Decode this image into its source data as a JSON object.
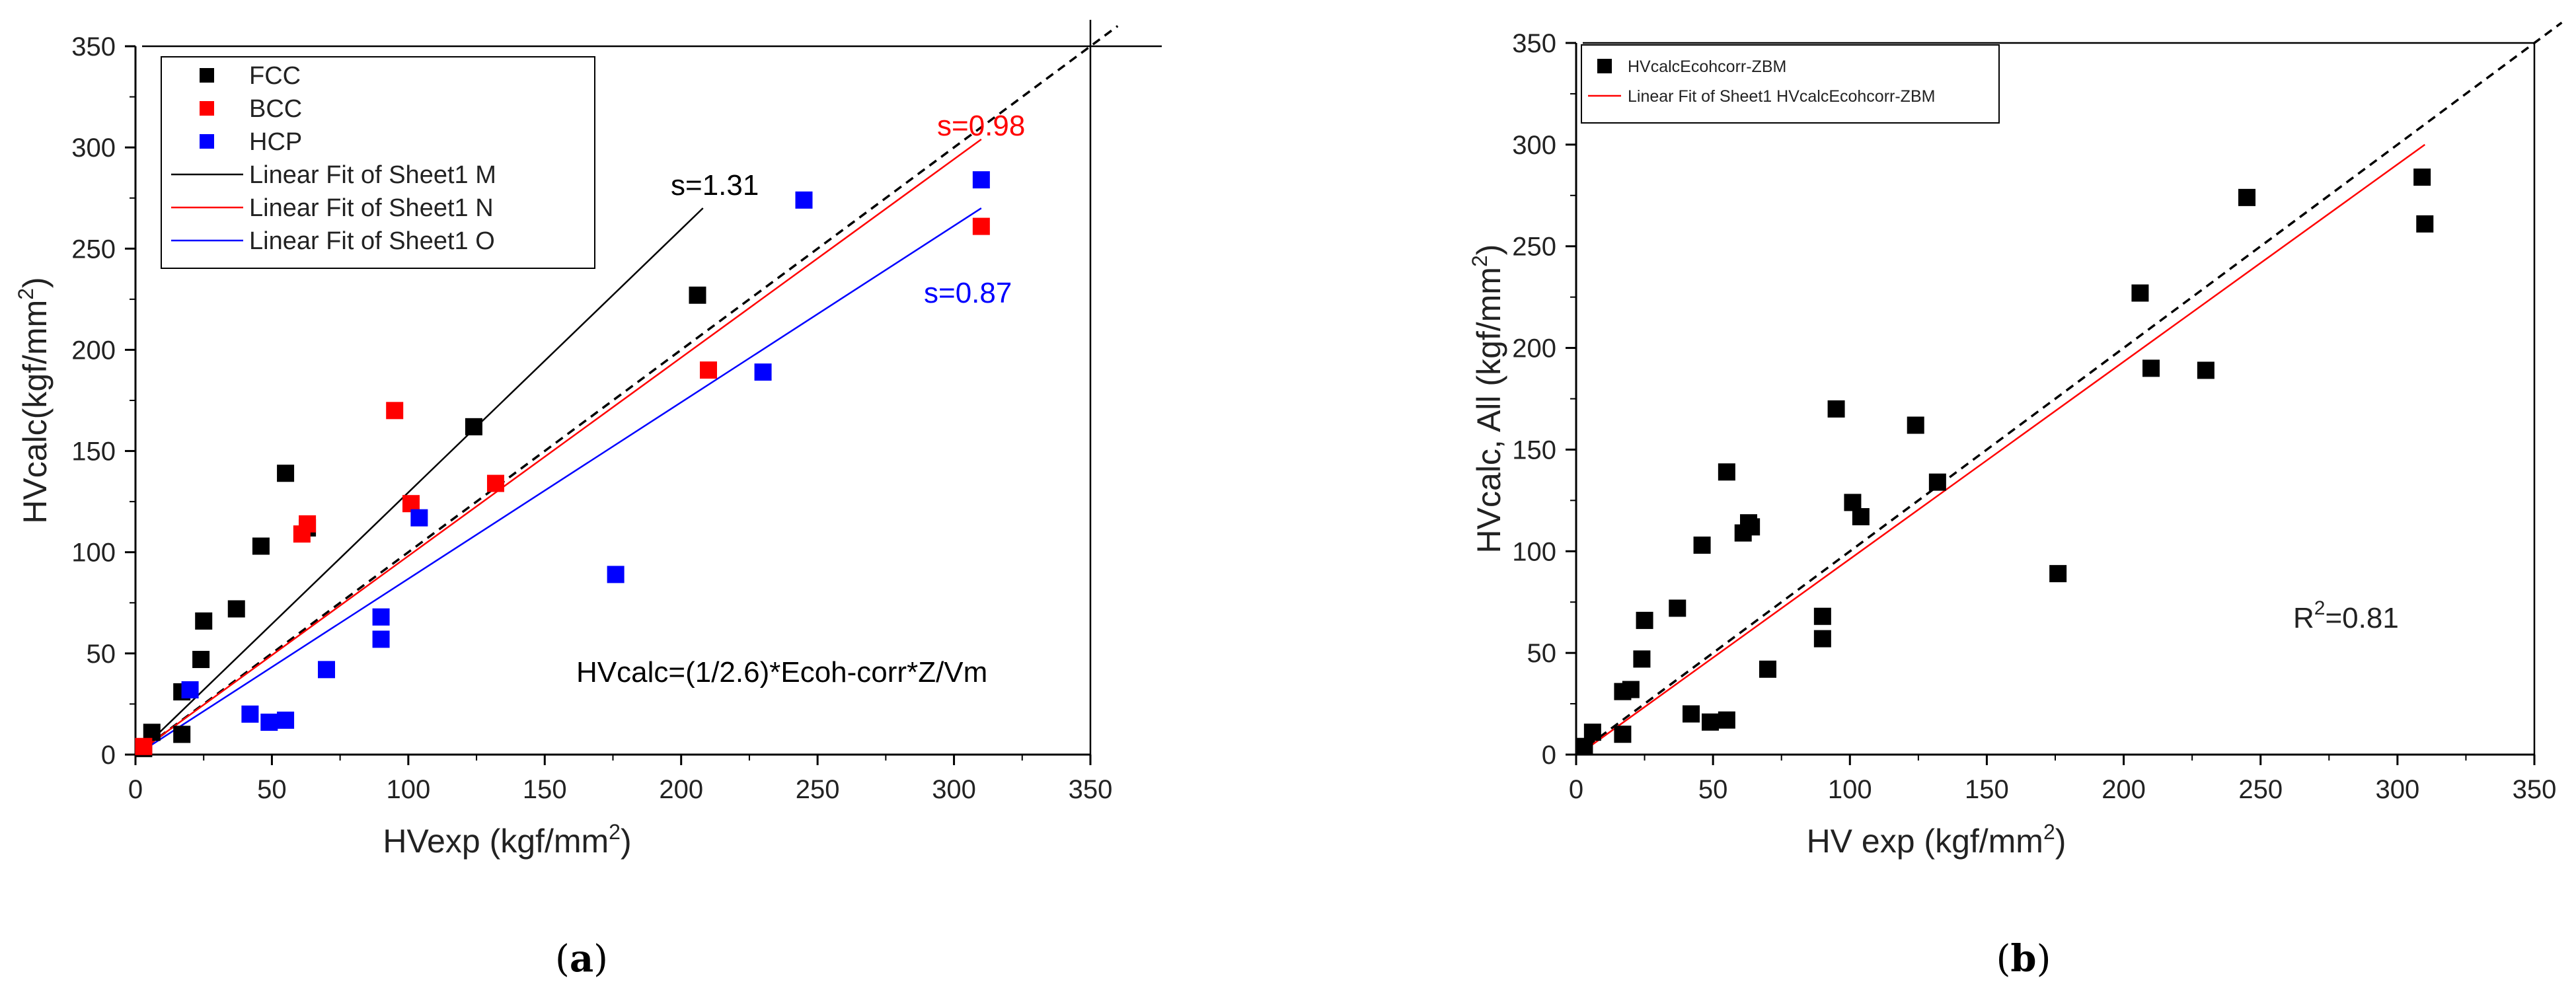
{
  "chart_data": [
    {
      "type": "scatter",
      "panel_label": {
        "open": "(",
        "letter": "a",
        "close": ")"
      },
      "xlabel": "HVexp (kgf/mm2)",
      "xlabel_parts": {
        "main": "HVexp (kgf/mm",
        "sup": "2",
        "end": ")"
      },
      "ylabel": "HVcalc(kgf/mm2)",
      "ylabel_parts": {
        "main": "HVcalc(kgf/mm",
        "sup": "2",
        "end": ")"
      },
      "xlim": [
        0,
        350
      ],
      "ylim": [
        0,
        350
      ],
      "xticks": [
        0,
        50,
        100,
        150,
        200,
        250,
        300,
        350
      ],
      "yticks": [
        0,
        50,
        100,
        150,
        200,
        250,
        300,
        350
      ],
      "legend_position": "top-left",
      "series": [
        {
          "name": "FCC",
          "color": "#000000",
          "points": [
            [
              3,
              3
            ],
            [
              6,
              11
            ],
            [
              17,
              10
            ],
            [
              17,
              31
            ],
            [
              24,
              47
            ],
            [
              25,
              66
            ],
            [
              37,
              72
            ],
            [
              46,
              103
            ],
            [
              55,
              139
            ],
            [
              63,
              112
            ],
            [
              124,
              162
            ],
            [
              206,
              227
            ]
          ]
        },
        {
          "name": "BCC",
          "color": "#ff0000",
          "points": [
            [
              3,
              4
            ],
            [
              61,
              109
            ],
            [
              63,
              114
            ],
            [
              95,
              170
            ],
            [
              101,
              124
            ],
            [
              132,
              134
            ],
            [
              210,
              190
            ],
            [
              310,
              261
            ]
          ]
        },
        {
          "name": "HCP",
          "color": "#0000ff",
          "points": [
            [
              20,
              32
            ],
            [
              42,
              20
            ],
            [
              49,
              16
            ],
            [
              55,
              17
            ],
            [
              70,
              42
            ],
            [
              90,
              57
            ],
            [
              90,
              68
            ],
            [
              104,
              117
            ],
            [
              176,
              89
            ],
            [
              230,
              189
            ],
            [
              245,
              274
            ],
            [
              310,
              284
            ]
          ]
        }
      ],
      "fit_lines": [
        {
          "name": "Linear Fit of Sheet1 M",
          "color": "#000000",
          "x": [
            5,
            208
          ],
          "y": [
            6,
            270
          ]
        },
        {
          "name": "Linear Fit of Sheet1 N",
          "color": "#ff0000",
          "x": [
            5,
            310
          ],
          "y": [
            5,
            304
          ]
        },
        {
          "name": "Linear Fit of Sheet1 O",
          "color": "#0000ff",
          "x": [
            5,
            310
          ],
          "y": [
            4,
            270
          ]
        }
      ],
      "identity_line": {
        "x": [
          0,
          360
        ],
        "y": [
          0,
          360
        ],
        "style": "dashed"
      },
      "reference_lines": {
        "x": 350,
        "y": 350
      },
      "annotations": [
        {
          "text": "s=1.31",
          "color": "#000000",
          "x": 198,
          "y": 277
        },
        {
          "text": "s=0.98",
          "color": "#ff0000",
          "x": 296,
          "y": 304
        },
        {
          "text": "s=0.87",
          "color": "#0000ff",
          "x": 292,
          "y": 223
        },
        {
          "text": "HVcalc=(1/2.6)*Ecoh-corr*Z/Vm",
          "color": "#000000",
          "x": 163,
          "y": 37
        }
      ]
    },
    {
      "type": "scatter",
      "panel_label": {
        "open": "(",
        "letter": "b",
        "close": ")"
      },
      "xlabel": "HV exp (kgf/mm2)",
      "xlabel_parts": {
        "main": "HV exp (kgf/mm",
        "sup": "2",
        "end": ")"
      },
      "ylabel": "HVcalc, All (kgf/mm2)",
      "ylabel_parts": {
        "main": "HVcalc, All (kgf/mm",
        "sup": "2",
        "end": ")"
      },
      "xlim": [
        0,
        350
      ],
      "ylim": [
        0,
        350
      ],
      "xticks": [
        0,
        50,
        100,
        150,
        200,
        250,
        300,
        350
      ],
      "yticks": [
        0,
        50,
        100,
        150,
        200,
        250,
        300,
        350
      ],
      "legend_position": "top-left",
      "series": [
        {
          "name": "HVcalcEcohcorr-ZBM",
          "color": "#000000",
          "points": [
            [
              3,
              4
            ],
            [
              6,
              11
            ],
            [
              17,
              10
            ],
            [
              17,
              31
            ],
            [
              20,
              32
            ],
            [
              24,
              47
            ],
            [
              25,
              66
            ],
            [
              37,
              72
            ],
            [
              42,
              20
            ],
            [
              46,
              103
            ],
            [
              49,
              16
            ],
            [
              55,
              17
            ],
            [
              55,
              139
            ],
            [
              61,
              109
            ],
            [
              63,
              114
            ],
            [
              64,
              112
            ],
            [
              70,
              42
            ],
            [
              90,
              57
            ],
            [
              90,
              68
            ],
            [
              95,
              170
            ],
            [
              101,
              124
            ],
            [
              104,
              117
            ],
            [
              124,
              162
            ],
            [
              132,
              134
            ],
            [
              176,
              89
            ],
            [
              206,
              227
            ],
            [
              210,
              190
            ],
            [
              230,
              189
            ],
            [
              245,
              274
            ],
            [
              309,
              284
            ],
            [
              310,
              261
            ]
          ]
        }
      ],
      "fit_lines": [
        {
          "name": "Linear Fit of Sheet1 HVcalcEcohcorr-ZBM",
          "color": "#ff0000",
          "x": [
            5,
            310
          ],
          "y": [
            4,
            300
          ]
        }
      ],
      "identity_line": {
        "x": [
          0,
          360
        ],
        "y": [
          0,
          360
        ],
        "style": "dashed"
      },
      "reference_lines": {
        "x": 350,
        "y": 350
      },
      "annotations": [
        {
          "text": "R2=0.81",
          "main": "R",
          "sup": "2",
          "end": "=0.81",
          "color": "#000000",
          "x": 263,
          "y": 64
        }
      ]
    }
  ]
}
